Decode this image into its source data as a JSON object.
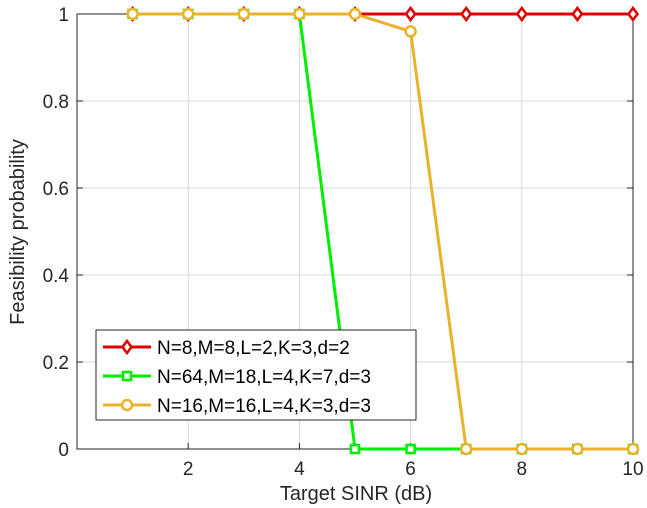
{
  "chart_data": {
    "type": "line",
    "xlabel": "Target SINR (dB)",
    "ylabel": "Feasibility probability",
    "xlim": [
      0,
      10
    ],
    "ylim": [
      0,
      1
    ],
    "xticks": [
      2,
      4,
      6,
      8,
      10
    ],
    "xtick_labels": [
      "2",
      "4",
      "6",
      "8",
      "10"
    ],
    "yticks": [
      0,
      0.2,
      0.4,
      0.6,
      0.8,
      1
    ],
    "ytick_labels": [
      "0",
      "0.2",
      "0.4",
      "0.6",
      "0.8",
      "1"
    ],
    "grid": true,
    "legend_position": "bottom-left",
    "x": [
      1,
      2,
      3,
      4,
      5,
      6,
      7,
      8,
      9,
      10
    ],
    "series": [
      {
        "name": "N=8,M=8,L=2,K=3,d=2",
        "color": "#e00000",
        "marker": "diamond",
        "values": [
          1,
          1,
          1,
          1,
          1,
          1,
          1,
          1,
          1,
          1
        ]
      },
      {
        "name": "N=64,M=18,L=4,K=7,d=3",
        "color": "#00ee00",
        "marker": "square",
        "values": [
          1,
          1,
          1,
          1,
          0,
          0,
          0,
          0,
          0,
          0
        ]
      },
      {
        "name": "N=16,M=16,L=4,K=3,d=3",
        "color": "#eab22a",
        "marker": "circle",
        "values": [
          1,
          1,
          1,
          1,
          1,
          0.96,
          0,
          0,
          0,
          0
        ]
      }
    ]
  }
}
